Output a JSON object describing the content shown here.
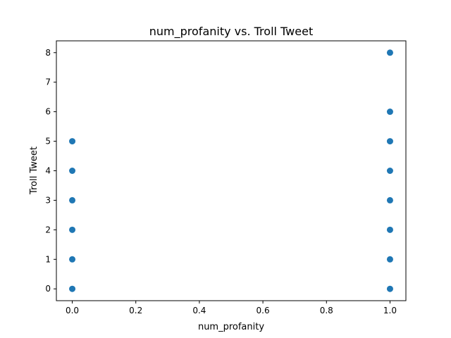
{
  "chart_data": {
    "type": "scatter",
    "title": "num_profanity vs. Troll Tweet",
    "xlabel": "num_profanity",
    "ylabel": "Troll Tweet",
    "xlim": [
      -0.05,
      1.05
    ],
    "ylim": [
      -0.4,
      8.4
    ],
    "xticks": [
      0.0,
      0.2,
      0.4,
      0.6,
      0.8,
      1.0
    ],
    "xtick_labels": [
      "0.0",
      "0.2",
      "0.4",
      "0.6",
      "0.8",
      "1.0"
    ],
    "yticks": [
      0,
      1,
      2,
      3,
      4,
      5,
      6,
      7,
      8
    ],
    "ytick_labels": [
      "0",
      "1",
      "2",
      "3",
      "4",
      "5",
      "6",
      "7",
      "8"
    ],
    "grid": false,
    "marker_color": "#1f77b4",
    "points": [
      {
        "x": 0.0,
        "y": 0
      },
      {
        "x": 0.0,
        "y": 1
      },
      {
        "x": 0.0,
        "y": 2
      },
      {
        "x": 0.0,
        "y": 3
      },
      {
        "x": 0.0,
        "y": 4
      },
      {
        "x": 0.0,
        "y": 5
      },
      {
        "x": 1.0,
        "y": 0
      },
      {
        "x": 1.0,
        "y": 1
      },
      {
        "x": 1.0,
        "y": 2
      },
      {
        "x": 1.0,
        "y": 3
      },
      {
        "x": 1.0,
        "y": 4
      },
      {
        "x": 1.0,
        "y": 5
      },
      {
        "x": 1.0,
        "y": 6
      },
      {
        "x": 1.0,
        "y": 8
      }
    ]
  }
}
